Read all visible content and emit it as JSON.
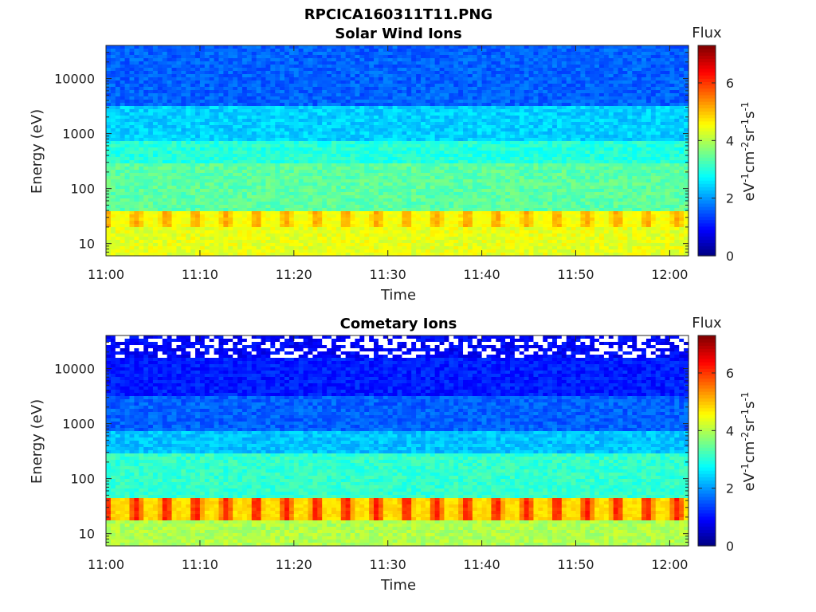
{
  "figure": {
    "title": "RPCICA160311T11.PNG"
  },
  "colormap": [
    "#00007f",
    "#0000ff",
    "#007fff",
    "#00ffff",
    "#7fff7f",
    "#ffff00",
    "#ff7f00",
    "#ff0000",
    "#7f0000"
  ],
  "chart_data": [
    {
      "type": "heatmap",
      "title": "Solar Wind Ions",
      "xlabel": "Time",
      "ylabel": "Energy (eV)",
      "x_tick_labels": [
        "11:00",
        "11:10",
        "11:20",
        "11:30",
        "11:40",
        "11:50",
        "12:00"
      ],
      "x_range": [
        "11:00",
        "12:02"
      ],
      "y_scale": "log",
      "y_ticks": [
        10,
        100,
        1000,
        10000
      ],
      "y_tick_labels": [
        "10",
        "100",
        "1000",
        "10000"
      ],
      "y_range": [
        6,
        40000
      ],
      "colorbar": {
        "title": "Flux",
        "label": "eV-1cm-2sr-1s-1",
        "range": [
          0,
          7.3
        ],
        "ticks": [
          0,
          2,
          4,
          6
        ],
        "tick_labels": [
          "0",
          "2",
          "4",
          "6"
        ]
      },
      "bands": [
        {
          "energy_range": [
            6,
            20
          ],
          "flux": 4.4
        },
        {
          "energy_range": [
            20,
            40
          ],
          "flux": 4.9,
          "pulse_period_min": 3.2,
          "peak_flux": 5.2
        },
        {
          "energy_range": [
            40,
            300
          ],
          "flux": 3.4
        },
        {
          "energy_range": [
            300,
            700
          ],
          "flux": 3.0
        },
        {
          "energy_range": [
            700,
            3000
          ],
          "flux": 2.4
        },
        {
          "energy_range": [
            3000,
            40000
          ],
          "flux": 1.6
        }
      ]
    },
    {
      "type": "heatmap",
      "title": "Cometary Ions",
      "xlabel": "Time",
      "ylabel": "Energy (eV)",
      "x_tick_labels": [
        "11:00",
        "11:10",
        "11:20",
        "11:30",
        "11:40",
        "11:50",
        "12:00"
      ],
      "x_range": [
        "11:00",
        "12:02"
      ],
      "y_scale": "log",
      "y_ticks": [
        10,
        100,
        1000,
        10000
      ],
      "y_tick_labels": [
        "10",
        "100",
        "1000",
        "10000"
      ],
      "y_range": [
        6,
        40000
      ],
      "colorbar": {
        "title": "Flux",
        "label": "eV-1cm-2sr-1s-1",
        "range": [
          0,
          7.3
        ],
        "ticks": [
          0,
          2,
          4,
          6
        ],
        "tick_labels": [
          "0",
          "2",
          "4",
          "6"
        ]
      },
      "bands": [
        {
          "energy_range": [
            6,
            18
          ],
          "flux": 4.0
        },
        {
          "energy_range": [
            18,
            45
          ],
          "flux": 5.2,
          "pulse_period_min": 3.2,
          "peak_flux": 6.2
        },
        {
          "energy_range": [
            45,
            300
          ],
          "flux": 3.1
        },
        {
          "energy_range": [
            300,
            700
          ],
          "flux": 2.3
        },
        {
          "energy_range": [
            700,
            3000
          ],
          "flux": 1.6
        },
        {
          "energy_range": [
            3000,
            15000
          ],
          "flux": 1.1
        },
        {
          "energy_range": [
            15000,
            40000
          ],
          "flux": 0.9,
          "empty_bins": true
        }
      ]
    }
  ]
}
